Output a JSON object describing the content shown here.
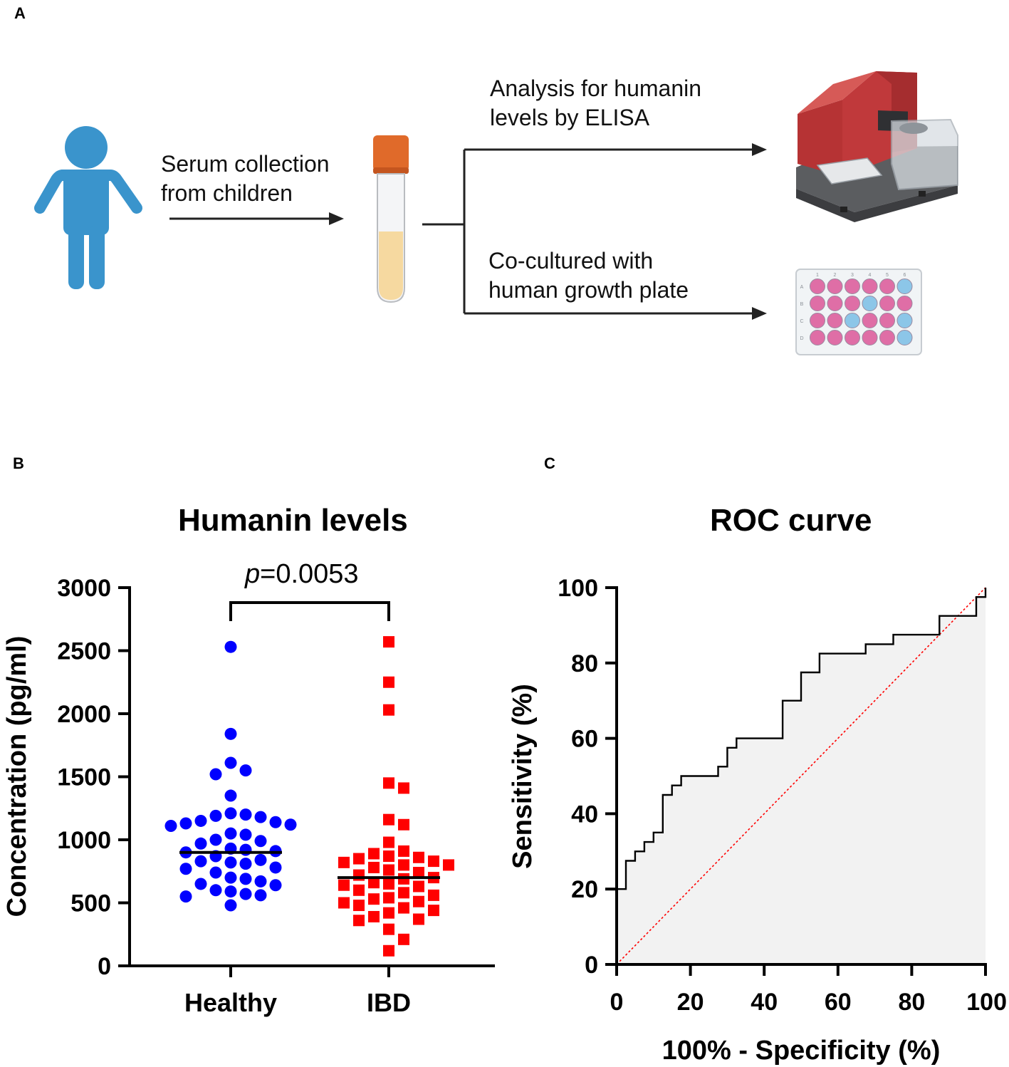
{
  "panel_a": {
    "label": "A",
    "step_serum_line1": "Serum collection",
    "step_serum_line2": "from children",
    "step_elisa_line1": "Analysis for humanin",
    "step_elisa_line2": "levels by ELISA",
    "step_coculture_line1": "Co-cultured with",
    "step_coculture_line2": "human growth plate",
    "plate_cols": [
      "1",
      "2",
      "3",
      "4",
      "5",
      "6"
    ],
    "plate_rows": [
      "A",
      "B",
      "C",
      "D"
    ],
    "colors": {
      "child": "#3a94cc",
      "cap": "#e06a2a",
      "serum": "#f6d9a0",
      "reader": "#c0393b",
      "well_pink": "#df6ea6",
      "well_blue": "#8cc6e8"
    }
  },
  "panel_b": {
    "label": "B",
    "title": "Humanin levels",
    "pvalue_prefix": "p",
    "pvalue_rest": "=0.0053",
    "colors": {
      "healthy": "#0000ff",
      "ibd": "#ff0000"
    }
  },
  "panel_c": {
    "label": "C",
    "title": "ROC curve",
    "colors": {
      "curve": "#000000",
      "fill": "#f2f2f2",
      "reference": "#ff0000"
    }
  },
  "chart_data": [
    {
      "type": "scatter",
      "title": "Humanin levels",
      "xlabel": "",
      "ylabel": "Concentration (pg/ml)",
      "ylim": [
        0,
        3000
      ],
      "yticks": [
        0,
        500,
        1000,
        1500,
        2000,
        2500,
        3000
      ],
      "categories": [
        "Healthy",
        "IBD"
      ],
      "annotation": "p=0.0053",
      "series": [
        {
          "name": "Healthy",
          "marker": "circle",
          "median": 900,
          "values": [
            2530,
            1840,
            1610,
            1550,
            1520,
            1350,
            1210,
            1200,
            1190,
            1180,
            1150,
            1140,
            1130,
            1120,
            1110,
            1050,
            1040,
            1000,
            990,
            970,
            930,
            920,
            910,
            900,
            870,
            840,
            830,
            820,
            810,
            780,
            770,
            740,
            700,
            690,
            670,
            650,
            640,
            600,
            590,
            570,
            560,
            550,
            480
          ]
        },
        {
          "name": "IBD",
          "marker": "square",
          "median": 700,
          "values": [
            2570,
            2250,
            2030,
            1450,
            1410,
            1160,
            1120,
            980,
            910,
            890,
            870,
            860,
            850,
            830,
            820,
            800,
            800,
            780,
            760,
            740,
            720,
            700,
            690,
            660,
            650,
            640,
            630,
            600,
            580,
            560,
            540,
            530,
            510,
            500,
            480,
            460,
            440,
            420,
            390,
            370,
            360,
            290,
            210,
            120
          ]
        }
      ]
    },
    {
      "type": "line",
      "title": "ROC curve",
      "xlabel": "100% - Specificity (%)",
      "ylabel": "Sensitivity (%)",
      "xlim": [
        0,
        100
      ],
      "ylim": [
        0,
        100
      ],
      "xticks": [
        0,
        20,
        40,
        60,
        80,
        100
      ],
      "yticks": [
        0,
        20,
        40,
        60,
        80,
        100
      ],
      "series": [
        {
          "name": "ROC",
          "step": true,
          "x": [
            0,
            2.5,
            2.5,
            5,
            5,
            7.5,
            7.5,
            10,
            10,
            12.5,
            12.5,
            15,
            15,
            17.5,
            17.5,
            27.5,
            27.5,
            30,
            30,
            32.5,
            32.5,
            45,
            45,
            50,
            50,
            55,
            55,
            67.5,
            67.5,
            75,
            75,
            87.5,
            87.5,
            97.5,
            97.5,
            100,
            100
          ],
          "y": [
            20,
            20,
            27.5,
            27.5,
            30,
            30,
            32.5,
            32.5,
            35,
            35,
            45,
            45,
            47.5,
            47.5,
            50,
            50,
            52.5,
            52.5,
            57.5,
            57.5,
            60,
            60,
            70,
            70,
            77.5,
            77.5,
            82.5,
            82.5,
            85,
            85,
            87.5,
            87.5,
            92.5,
            92.5,
            97.5,
            97.5,
            100
          ]
        },
        {
          "name": "Reference",
          "style": "dotted",
          "x": [
            0,
            100
          ],
          "y": [
            0,
            100
          ]
        }
      ]
    }
  ]
}
